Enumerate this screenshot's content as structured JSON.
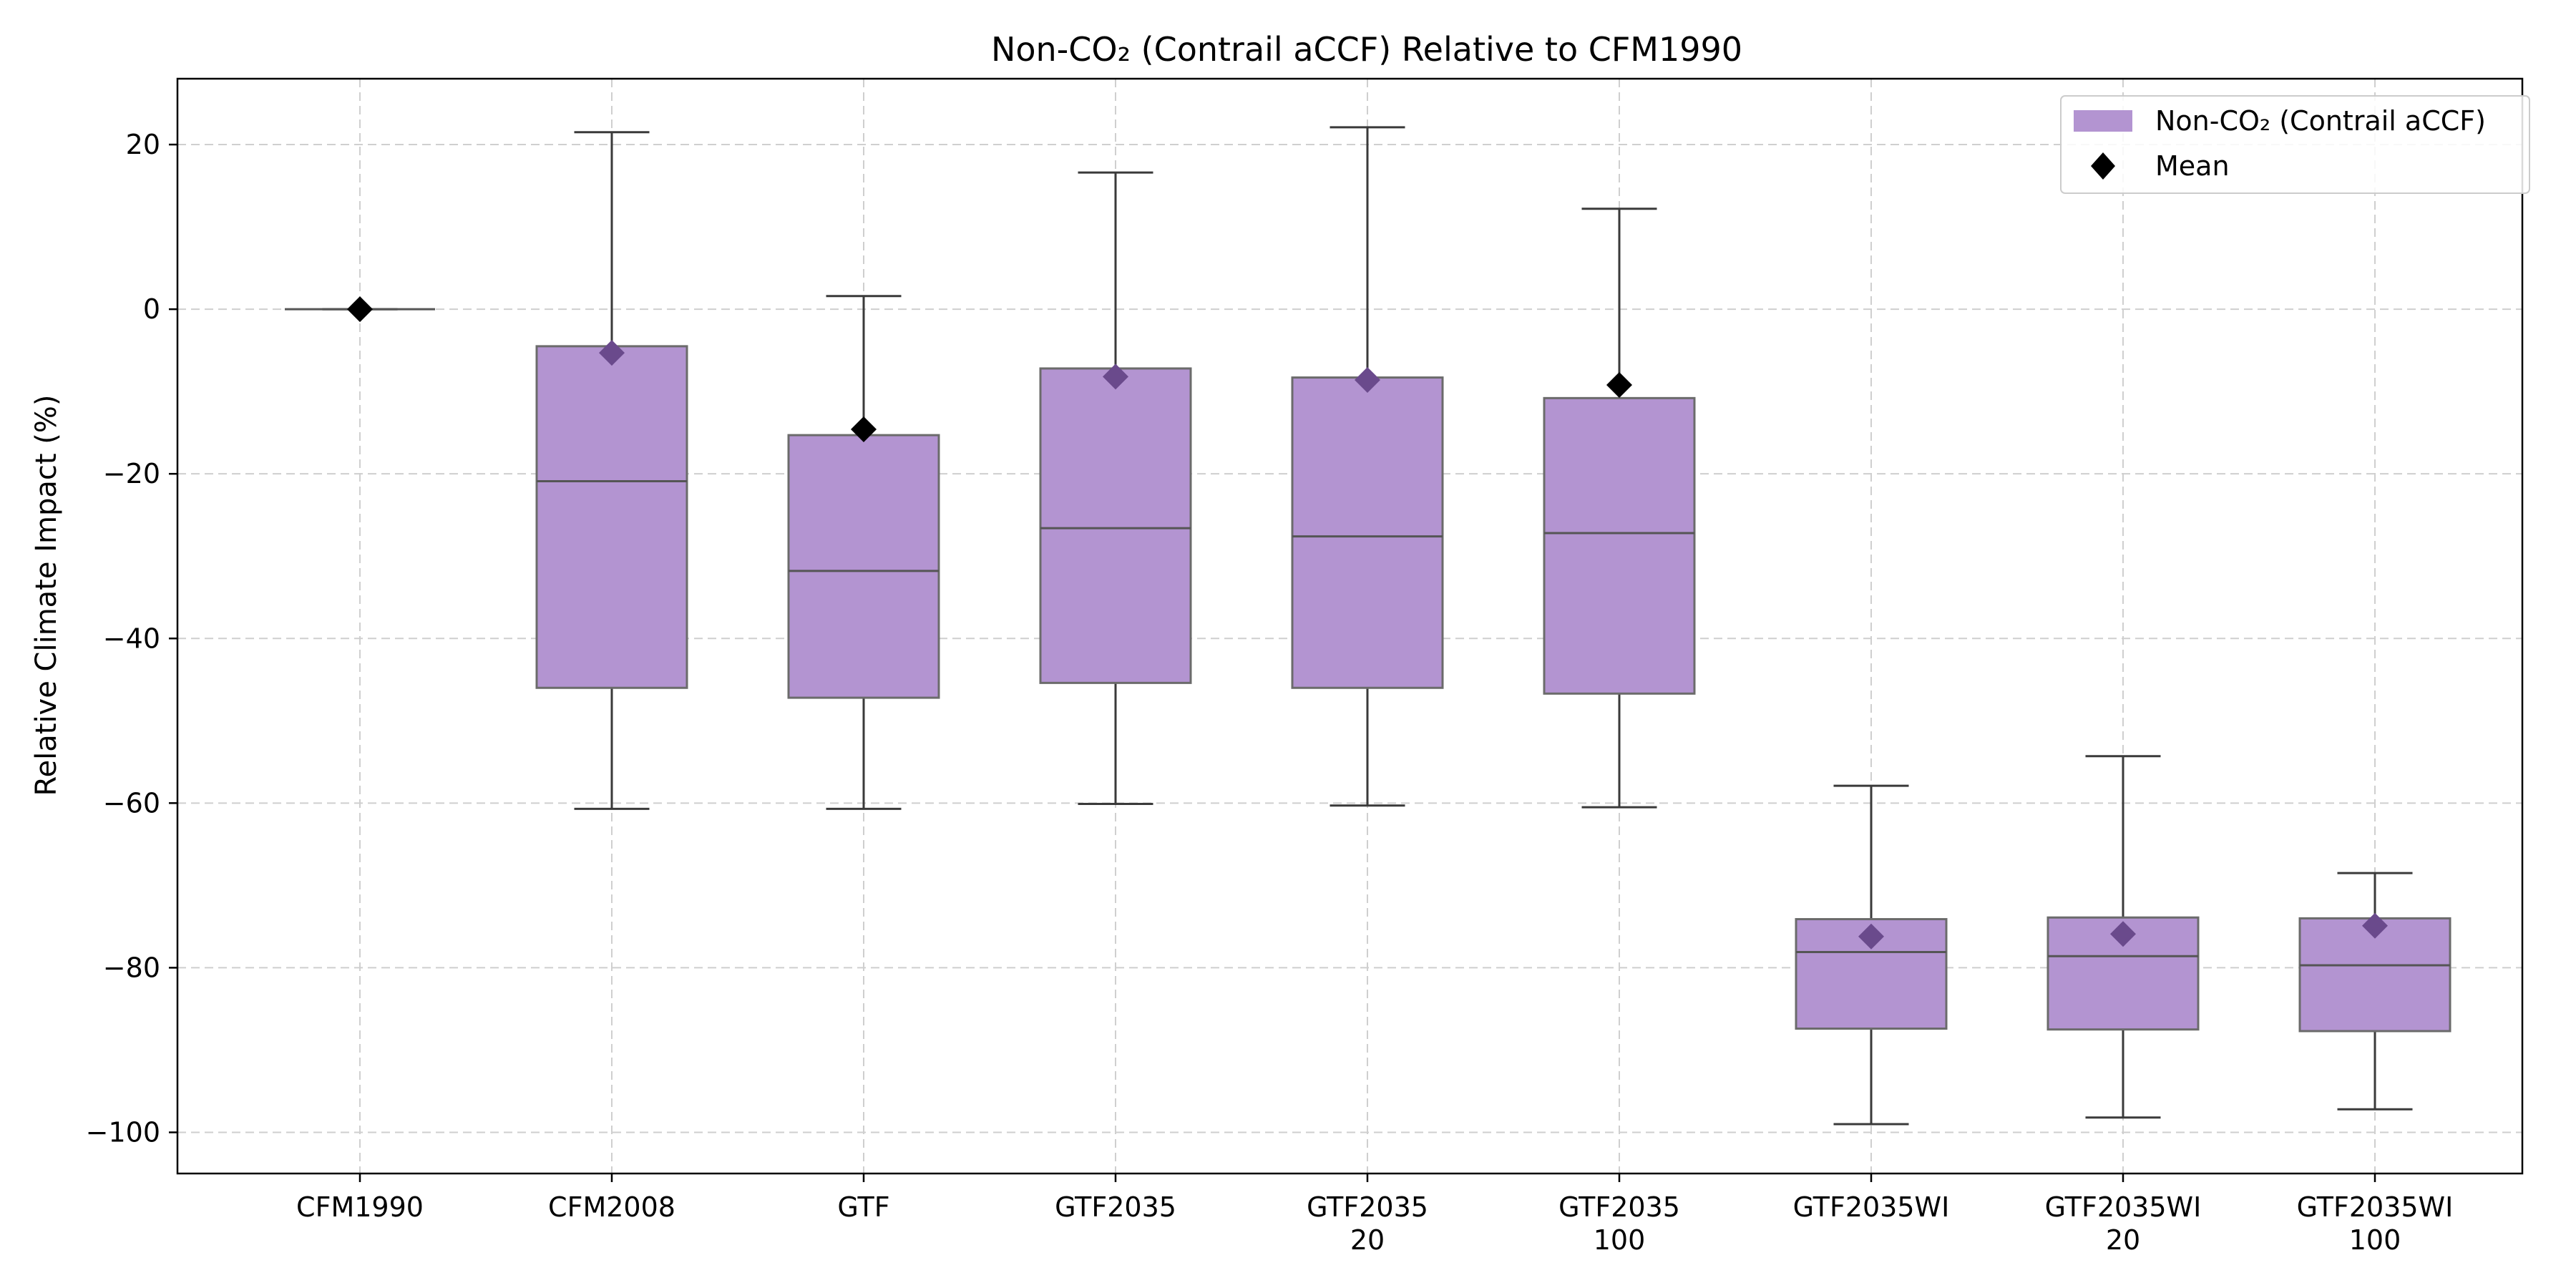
{
  "chart_data": {
    "type": "box",
    "title": "Non-CO₂ (Contrail aCCF) Relative to CFM1990",
    "xlabel": "",
    "ylabel": "Relative Climate Impact (%)",
    "ylim": [
      -105,
      28
    ],
    "yticks": [
      -100,
      -80,
      -60,
      -40,
      -20,
      0,
      20
    ],
    "grid": true,
    "legend_position": "top-right",
    "legend": [
      {
        "label": "Non-CO₂ (Contrail aCCF)",
        "kind": "box"
      },
      {
        "label": "Mean",
        "kind": "diamond"
      }
    ],
    "colors": {
      "box_fill": "#b394d1",
      "box_edge": "#6b6b6b",
      "median": "#555555",
      "whisker": "#3a3a3a",
      "mean_on_box": "#6a4a8c",
      "mean_off_box": "#000000",
      "grid": "#cfcfcf"
    },
    "categories": [
      [
        "CFM1990"
      ],
      [
        "CFM2008"
      ],
      [
        "GTF"
      ],
      [
        "GTF2035"
      ],
      [
        "GTF2035",
        "20"
      ],
      [
        "GTF2035",
        "100"
      ],
      [
        "GTF2035WI"
      ],
      [
        "GTF2035WI",
        "20"
      ],
      [
        "GTF2035WI",
        "100"
      ]
    ],
    "boxes": [
      {
        "whislo": 0,
        "q1": 0,
        "med": 0,
        "q3": 0,
        "whishi": 0,
        "mean": 0
      },
      {
        "whislo": -60.7,
        "q1": -46.0,
        "med": -20.9,
        "q3": -4.5,
        "whishi": 21.5,
        "mean": -5.3
      },
      {
        "whislo": -60.7,
        "q1": -47.2,
        "med": -31.8,
        "q3": -15.3,
        "whishi": 1.6,
        "mean": -14.6
      },
      {
        "whislo": -60.1,
        "q1": -45.4,
        "med": -26.6,
        "q3": -7.2,
        "whishi": 16.6,
        "mean": -8.2
      },
      {
        "whislo": -60.3,
        "q1": -46.0,
        "med": -27.6,
        "q3": -8.3,
        "whishi": 22.1,
        "mean": -8.6
      },
      {
        "whislo": -60.5,
        "q1": -46.7,
        "med": -27.2,
        "q3": -10.8,
        "whishi": 12.2,
        "mean": -9.2
      },
      {
        "whislo": -99.0,
        "q1": -87.4,
        "med": -78.1,
        "q3": -74.1,
        "whishi": -57.9,
        "mean": -76.2
      },
      {
        "whislo": -98.2,
        "q1": -87.5,
        "med": -78.6,
        "q3": -73.9,
        "whishi": -54.3,
        "mean": -75.9
      },
      {
        "whislo": -97.2,
        "q1": -87.7,
        "med": -79.7,
        "q3": -74.0,
        "whishi": -68.5,
        "mean": -74.9
      }
    ]
  }
}
